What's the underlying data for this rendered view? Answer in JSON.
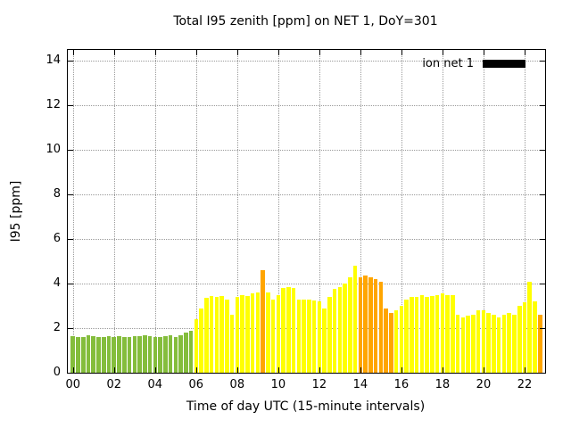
{
  "legend": {
    "label": "ion net 1",
    "swatch_color": "#000000"
  },
  "chart_data": {
    "type": "bar",
    "title": "Total I95 zenith [ppm] on NET 1, DoY=301",
    "xlabel": "Time of day UTC (15-minute intervals)",
    "ylabel": "I95 [ppm]",
    "x_start": "00:00",
    "step_minutes": 15,
    "xlim": [
      -0.25,
      23.0
    ],
    "ylim": [
      0,
      14.5
    ],
    "grid": true,
    "legend_position": "top-right-inside",
    "xticks": {
      "values": [
        0,
        2,
        4,
        6,
        8,
        10,
        12,
        14,
        16,
        18,
        20,
        22
      ],
      "labels": [
        "00",
        "02",
        "04",
        "06",
        "08",
        "10",
        "12",
        "14",
        "16",
        "18",
        "20",
        "22"
      ]
    },
    "yticks": {
      "values": [
        0,
        2,
        4,
        6,
        8,
        10,
        12,
        14
      ],
      "labels": [
        "0",
        "2",
        "4",
        "6",
        "8",
        "10",
        "12",
        "14"
      ]
    },
    "palette": {
      "g": "#84bd3c",
      "y": "#ffff00",
      "o": "#ffa500"
    },
    "series": [
      {
        "name": "ion net 1",
        "values": [
          1.65,
          1.6,
          1.6,
          1.7,
          1.65,
          1.6,
          1.6,
          1.65,
          1.6,
          1.65,
          1.6,
          1.6,
          1.65,
          1.65,
          1.7,
          1.65,
          1.6,
          1.6,
          1.65,
          1.7,
          1.6,
          1.7,
          1.8,
          1.9,
          2.4,
          2.9,
          3.35,
          3.45,
          3.4,
          3.45,
          3.3,
          2.6,
          3.4,
          3.5,
          3.45,
          3.55,
          3.6,
          4.6,
          3.6,
          3.3,
          3.5,
          3.8,
          3.85,
          3.8,
          3.3,
          3.3,
          3.3,
          3.25,
          3.2,
          2.9,
          3.4,
          3.75,
          3.85,
          4.0,
          4.3,
          4.8,
          4.3,
          4.35,
          4.3,
          4.2,
          4.1,
          2.9,
          2.7,
          2.8,
          3.0,
          3.3,
          3.4,
          3.4,
          3.5,
          3.4,
          3.45,
          3.5,
          3.55,
          3.5,
          3.5,
          2.6,
          2.5,
          2.55,
          2.6,
          2.8,
          2.8,
          2.7,
          2.6,
          2.5,
          2.6,
          2.7,
          2.6,
          3.0,
          3.15,
          4.1,
          3.2,
          2.6
        ],
        "colors": "ggggggggggggggggggggggggyyyyyyyyyyyyyoyyyyyyyyyyyyyyyyyyoooooooyyyyyyyyyyyyyyyyyyyyyyyyyyyyoyy"
      }
    ]
  }
}
